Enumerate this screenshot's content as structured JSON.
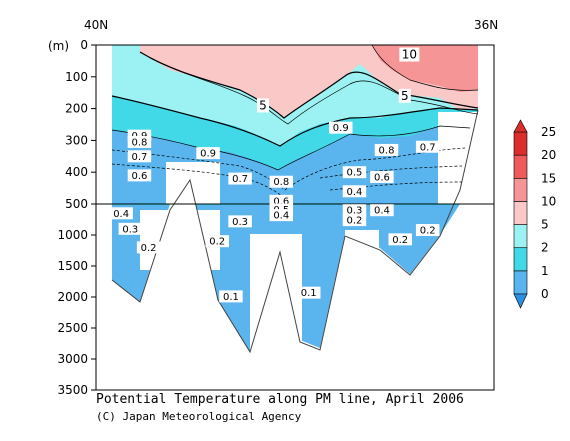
{
  "title": "Potential Temperature along PM line, April 2006",
  "credit": "(C) Japan Meteorological Agency",
  "chart_data": {
    "type": "heatmap",
    "title": "Potential Temperature along PM line, April 2006",
    "x_axis": {
      "left_label": "40N",
      "right_label": "36N",
      "range": [
        "40N",
        "36N"
      ]
    },
    "y_axis": {
      "unit_label": "(m)",
      "upper_ticks": [
        0,
        100,
        200,
        300,
        400,
        500
      ],
      "lower_ticks": [
        1000,
        1500,
        2000,
        2500,
        3000,
        3500
      ],
      "upper_range": [
        0,
        500
      ],
      "lower_range": [
        500,
        3500
      ],
      "scale_break_at": 500
    },
    "colorbar": {
      "levels": [
        0,
        1,
        2,
        5,
        10,
        15,
        20,
        25
      ],
      "colors": [
        "#5ab4ee",
        "#41d8e8",
        "#9cf2f2",
        "#fbc8c8",
        "#f59595",
        "#ef5a5a",
        "#dc2d2d"
      ]
    },
    "contour_labels": [
      {
        "text": "10",
        "lat": 36.75,
        "depth": 30
      },
      {
        "text": "5",
        "lat": 38.35,
        "depth": 190
      },
      {
        "text": "5",
        "lat": 36.8,
        "depth": 160
      },
      {
        "text": "0.9",
        "lat": 39.7,
        "depth": 285
      },
      {
        "text": "0.8",
        "lat": 39.7,
        "depth": 305
      },
      {
        "text": "0.7",
        "lat": 39.7,
        "depth": 350
      },
      {
        "text": "0.6",
        "lat": 39.7,
        "depth": 410
      },
      {
        "text": "0.9",
        "lat": 38.95,
        "depth": 340
      },
      {
        "text": "0.9",
        "lat": 37.5,
        "depth": 260
      },
      {
        "text": "0.8",
        "lat": 37.0,
        "depth": 330
      },
      {
        "text": "0.7",
        "lat": 36.55,
        "depth": 320
      },
      {
        "text": "0.7",
        "lat": 38.6,
        "depth": 420
      },
      {
        "text": "0.8",
        "lat": 38.15,
        "depth": 430
      },
      {
        "text": "0.5",
        "lat": 37.35,
        "depth": 400
      },
      {
        "text": "0.6",
        "lat": 37.05,
        "depth": 415
      },
      {
        "text": "0.4",
        "lat": 37.35,
        "depth": 460
      },
      {
        "text": "0.6",
        "lat": 38.15,
        "depth": 490
      },
      {
        "text": "0.5",
        "lat": 38.15,
        "depth": 590
      },
      {
        "text": "0.4",
        "lat": 38.15,
        "depth": 680
      },
      {
        "text": "0.3",
        "lat": 37.35,
        "depth": 600
      },
      {
        "text": "0.2",
        "lat": 37.35,
        "depth": 760
      },
      {
        "text": "0.4",
        "lat": 37.05,
        "depth": 600
      },
      {
        "text": "0.3",
        "lat": 38.6,
        "depth": 780
      },
      {
        "text": "0.4",
        "lat": 39.9,
        "depth": 650
      },
      {
        "text": "0.3",
        "lat": 39.8,
        "depth": 900
      },
      {
        "text": "0.2",
        "lat": 39.6,
        "depth": 1200
      },
      {
        "text": "0.2",
        "lat": 38.85,
        "depth": 1100
      },
      {
        "text": "0.2",
        "lat": 36.85,
        "depth": 1070
      },
      {
        "text": "0.2",
        "lat": 36.55,
        "depth": 920
      },
      {
        "text": "0.1",
        "lat": 38.7,
        "depth": 1990
      },
      {
        "text": "0.1",
        "lat": 37.85,
        "depth": 1930
      }
    ]
  }
}
